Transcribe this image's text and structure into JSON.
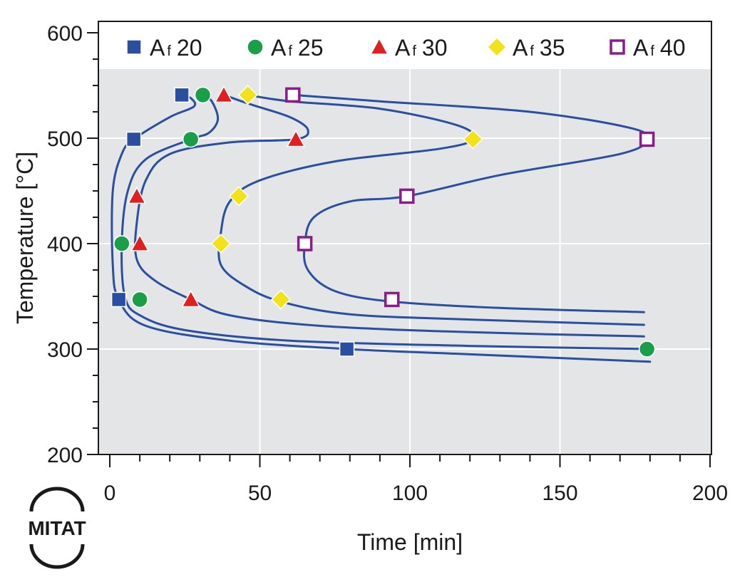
{
  "chart_data": {
    "type": "line",
    "title": "",
    "xlabel": "Time [min]",
    "ylabel": "Temperature [°C]",
    "xlim": [
      0,
      200
    ],
    "ylim": [
      200,
      600
    ],
    "x_ticks": [
      0,
      50,
      100,
      150,
      200
    ],
    "x_tick_labels": [
      "0",
      "50",
      "100",
      "150",
      "200"
    ],
    "y_ticks": [
      200,
      300,
      400,
      500,
      600
    ],
    "y_tick_labels": [
      "200",
      "300",
      "400",
      "500",
      "600"
    ],
    "grid": true,
    "legend_position": "top",
    "series": [
      {
        "name": "Af 20",
        "base": "A",
        "sub": "f",
        "num": "20",
        "marker": "square",
        "color": "#2a4fa0",
        "points": [
          [
            24,
            541
          ],
          [
            8,
            499
          ],
          [
            3,
            347
          ],
          [
            79,
            300
          ]
        ],
        "curve": [
          [
            180,
            288
          ],
          [
            120,
            295
          ],
          [
            79,
            300
          ],
          [
            40,
            308
          ],
          [
            12,
            322
          ],
          [
            3,
            347
          ],
          [
            1,
            380
          ],
          [
            1,
            450
          ],
          [
            4,
            485
          ],
          [
            8,
            499
          ],
          [
            20,
            520
          ],
          [
            28,
            530
          ],
          [
            27,
            538
          ],
          [
            24,
            541
          ]
        ]
      },
      {
        "name": "Af 25",
        "base": "A",
        "sub": "f",
        "num": "25",
        "marker": "circle",
        "color": "#1a9e4a",
        "points": [
          [
            31,
            541
          ],
          [
            27,
            499
          ],
          [
            4,
            400
          ],
          [
            10,
            347
          ],
          [
            179,
            300
          ]
        ],
        "curve": [
          [
            180,
            300
          ],
          [
            120,
            303
          ],
          [
            60,
            308
          ],
          [
            25,
            318
          ],
          [
            10,
            332
          ],
          [
            5,
            350
          ],
          [
            4,
            400
          ],
          [
            6,
            450
          ],
          [
            12,
            480
          ],
          [
            27,
            499
          ],
          [
            33,
            505
          ],
          [
            36,
            518
          ],
          [
            34,
            535
          ],
          [
            31,
            541
          ]
        ]
      },
      {
        "name": "Af 30",
        "base": "A",
        "sub": "f",
        "num": "30",
        "marker": "triangle",
        "color": "#e02020",
        "points": [
          [
            38,
            541
          ],
          [
            62,
            499
          ],
          [
            9,
            445
          ],
          [
            10,
            400
          ],
          [
            27,
            347
          ]
        ],
        "curve": [
          [
            178,
            312
          ],
          [
            120,
            316
          ],
          [
            70,
            322
          ],
          [
            40,
            332
          ],
          [
            27,
            347
          ],
          [
            15,
            365
          ],
          [
            9,
            385
          ],
          [
            9,
            420
          ],
          [
            12,
            460
          ],
          [
            20,
            485
          ],
          [
            40,
            496
          ],
          [
            62,
            499
          ],
          [
            66,
            508
          ],
          [
            60,
            520
          ],
          [
            47,
            532
          ],
          [
            38,
            541
          ]
        ]
      },
      {
        "name": "Af 35",
        "base": "A",
        "sub": "f",
        "num": "35",
        "marker": "diamond",
        "color": "#f2e21a",
        "points": [
          [
            46,
            541
          ],
          [
            121,
            499
          ],
          [
            43,
            445
          ],
          [
            37,
            400
          ],
          [
            57,
            347
          ]
        ],
        "curve": [
          [
            178,
            323
          ],
          [
            120,
            328
          ],
          [
            80,
            333
          ],
          [
            57,
            345
          ],
          [
            45,
            360
          ],
          [
            37,
            380
          ],
          [
            37,
            410
          ],
          [
            40,
            440
          ],
          [
            50,
            460
          ],
          [
            75,
            478
          ],
          [
            110,
            490
          ],
          [
            121,
            499
          ],
          [
            116,
            512
          ],
          [
            90,
            528
          ],
          [
            60,
            535
          ],
          [
            46,
            541
          ]
        ]
      },
      {
        "name": "Af 40",
        "base": "A",
        "sub": "f",
        "num": "40",
        "marker": "open-square",
        "color": "#8b1a8b",
        "points": [
          [
            61,
            541
          ],
          [
            179,
            499
          ],
          [
            99,
            445
          ],
          [
            65,
            400
          ],
          [
            94,
            347
          ]
        ],
        "curve": [
          [
            178,
            335
          ],
          [
            130,
            339
          ],
          [
            94,
            345
          ],
          [
            75,
            355
          ],
          [
            66,
            375
          ],
          [
            65,
            400
          ],
          [
            68,
            425
          ],
          [
            80,
            440
          ],
          [
            99,
            445
          ],
          [
            130,
            465
          ],
          [
            170,
            485
          ],
          [
            179,
            499
          ],
          [
            173,
            510
          ],
          [
            140,
            525
          ],
          [
            90,
            535
          ],
          [
            61,
            541
          ]
        ]
      }
    ]
  },
  "logo": {
    "text": "MITAT"
  },
  "colors": {
    "plot_bg": "#e4e5e6",
    "legend_bg": "#ffffff",
    "grid": "#ffffff",
    "curve": "#2a4fa0"
  }
}
